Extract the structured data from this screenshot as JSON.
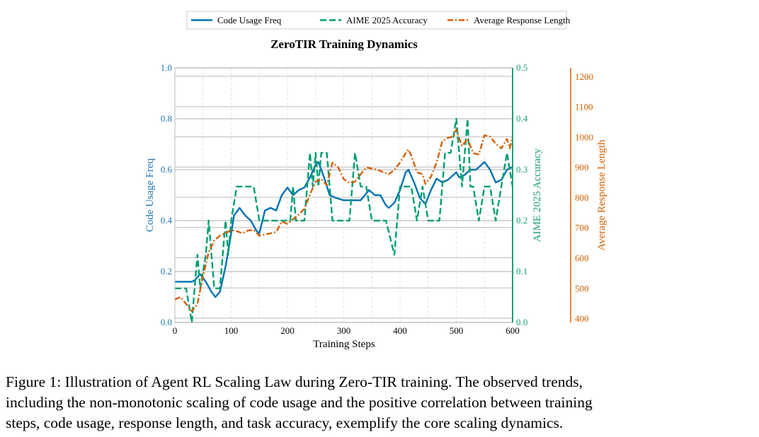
{
  "chart_data": {
    "type": "line",
    "title": "ZeroTIR Training Dynamics",
    "xlabel": "Training Steps",
    "xlim": [
      0,
      600
    ],
    "xticks": [
      0,
      100,
      200,
      300,
      400,
      500,
      600
    ],
    "grid": true,
    "legend_placement": "top-center (above plot)",
    "axes": {
      "left": {
        "label": "Code Usage Freq",
        "ylim": [
          0,
          1.0
        ],
        "ticks": [
          "0.0",
          "0.2",
          "0.4",
          "0.6",
          "0.8",
          "1.0"
        ],
        "color": "#1f77b4"
      },
      "right": {
        "label": "AIME 2025 Accuracy",
        "ylim": [
          0,
          0.5
        ],
        "ticks": [
          "0.0",
          "0.1",
          "0.2",
          "0.3",
          "0.4",
          "0.5"
        ],
        "color": "#1a9e77"
      },
      "right_outer": {
        "label": "Average Response Length",
        "ylim": [
          386,
          1228
        ],
        "ticks": [
          "400",
          "500",
          "600",
          "700",
          "800",
          "900",
          "1000",
          "1100",
          "1200"
        ],
        "color": "#d55e00"
      }
    },
    "series": [
      {
        "name": "Code Usage Freq",
        "axis": "left",
        "color": "#0072b2",
        "style": "solid",
        "x": [
          0,
          10,
          20,
          30,
          35,
          45,
          55,
          65,
          72,
          80,
          90,
          100,
          105,
          115,
          125,
          135,
          145,
          150,
          160,
          170,
          180,
          190,
          200,
          210,
          220,
          230,
          240,
          250,
          255,
          265,
          275,
          285,
          300,
          320,
          330,
          345,
          355,
          365,
          375,
          380,
          390,
          400,
          410,
          415,
          425,
          435,
          445,
          455,
          465,
          475,
          485,
          495,
          500,
          505,
          515,
          525,
          535,
          550,
          560,
          570,
          580,
          590,
          600
        ],
        "y": [
          0.16,
          0.16,
          0.16,
          0.16,
          0.165,
          0.19,
          0.16,
          0.12,
          0.1,
          0.12,
          0.22,
          0.35,
          0.42,
          0.45,
          0.42,
          0.4,
          0.36,
          0.35,
          0.44,
          0.45,
          0.44,
          0.5,
          0.53,
          0.5,
          0.52,
          0.53,
          0.57,
          0.62,
          0.63,
          0.57,
          0.5,
          0.49,
          0.48,
          0.48,
          0.48,
          0.52,
          0.5,
          0.5,
          0.46,
          0.45,
          0.47,
          0.52,
          0.59,
          0.6,
          0.55,
          0.49,
          0.465,
          0.52,
          0.565,
          0.55,
          0.56,
          0.58,
          0.59,
          0.57,
          0.58,
          0.6,
          0.6,
          0.63,
          0.6,
          0.55,
          0.56,
          0.6,
          0.61
        ]
      },
      {
        "name": "AIME 2025 Accuracy",
        "axis": "right",
        "color": "#009e73",
        "style": "dashed",
        "x": [
          0,
          20,
          30,
          40,
          45,
          55,
          60,
          65,
          70,
          80,
          90,
          95,
          100,
          110,
          140,
          150,
          160,
          190,
          205,
          210,
          215,
          220,
          230,
          240,
          245,
          250,
          255,
          260,
          270,
          280,
          310,
          320,
          330,
          340,
          350,
          375,
          390,
          400,
          420,
          430,
          440,
          450,
          460,
          470,
          480,
          490,
          500,
          510,
          520,
          525,
          530,
          540,
          550,
          560,
          570,
          590,
          600
        ],
        "y": [
          0.067,
          0.067,
          0.0,
          0.133,
          0.067,
          0.133,
          0.2,
          0.133,
          0.067,
          0.067,
          0.2,
          0.133,
          0.2,
          0.267,
          0.267,
          0.2,
          0.2,
          0.2,
          0.2,
          0.267,
          0.2,
          0.2,
          0.2,
          0.333,
          0.267,
          0.333,
          0.267,
          0.333,
          0.333,
          0.2,
          0.2,
          0.333,
          0.267,
          0.267,
          0.2,
          0.2,
          0.133,
          0.267,
          0.267,
          0.2,
          0.267,
          0.2,
          0.2,
          0.2,
          0.333,
          0.333,
          0.4,
          0.267,
          0.4,
          0.267,
          0.267,
          0.2,
          0.267,
          0.267,
          0.2,
          0.333,
          0.267
        ]
      },
      {
        "name": "Average Response Length",
        "axis": "right_outer",
        "color": "#d55e00",
        "style": "dashdot",
        "x": [
          0,
          10,
          20,
          30,
          40,
          50,
          60,
          70,
          80,
          90,
          100,
          110,
          120,
          130,
          140,
          150,
          160,
          170,
          180,
          190,
          200,
          210,
          220,
          230,
          240,
          250,
          260,
          270,
          280,
          290,
          300,
          310,
          320,
          330,
          340,
          350,
          360,
          370,
          380,
          390,
          400,
          410,
          415,
          420,
          430,
          440,
          445,
          455,
          465,
          475,
          485,
          495,
          500,
          510,
          520,
          530,
          540,
          550,
          560,
          570,
          580,
          590,
          595,
          600
        ],
        "y": [
          462,
          470,
          447,
          423,
          447,
          540,
          618,
          657,
          673,
          681,
          692,
          688,
          681,
          690,
          692,
          673,
          677,
          681,
          685,
          720,
          712,
          727,
          743,
          762,
          809,
          852,
          860,
          840,
          915,
          899,
          860,
          848,
          852,
          876,
          899,
          895,
          891,
          883,
          876,
          891,
          915,
          946,
          958,
          938,
          883,
          876,
          844,
          868,
          915,
          985,
          997,
          1001,
          1024,
          969,
          993,
          946,
          942,
          1005,
          1001,
          977,
          962,
          993,
          962,
          1001
        ]
      }
    ]
  },
  "caption": {
    "line1": "Figure 1: Illustration of Agent RL Scaling Law during Zero-TIR training.  The observed trends,",
    "line2": "including the non-monotonic scaling of code usage and the positive correlation between training",
    "line3": "steps, code usage, response length, and task accuracy, exemplify the core scaling dynamics."
  }
}
